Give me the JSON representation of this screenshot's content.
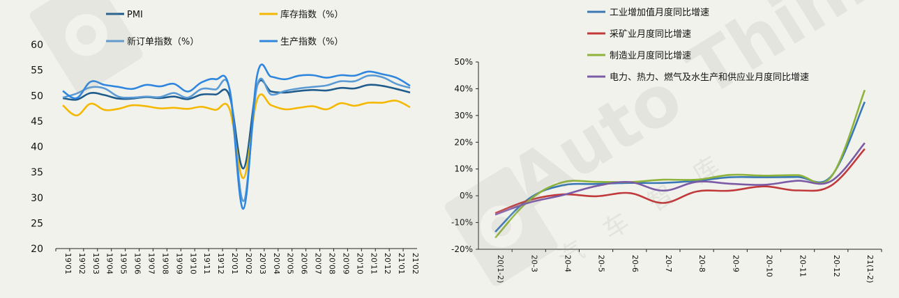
{
  "chart_data": [
    {
      "type": "line",
      "categories": [
        "19'01",
        "19'02",
        "19'03",
        "19'04",
        "19'05",
        "19'06",
        "19'07",
        "19'08",
        "19'09",
        "19'10",
        "19'11",
        "19'12",
        "20'01",
        "20'02",
        "20'03",
        "20'04",
        "20'05",
        "20'06",
        "20'07",
        "20'08",
        "20'09",
        "20'10",
        "20'11",
        "20'12",
        "21'01",
        "21'02"
      ],
      "ylim": [
        20,
        60
      ],
      "yticks": [
        "20",
        "25",
        "30",
        "35",
        "40",
        "45",
        "50",
        "55",
        "60"
      ],
      "legend_position": "top",
      "series": [
        {
          "name": "PMI",
          "color": "#1f5c8c",
          "values": [
            49.5,
            49.2,
            50.5,
            50.1,
            49.4,
            49.4,
            49.7,
            49.5,
            49.8,
            49.3,
            50.2,
            50.2,
            50.0,
            35.7,
            52.0,
            50.8,
            50.6,
            50.9,
            51.1,
            51.0,
            51.5,
            51.4,
            52.1,
            51.9,
            51.3,
            50.6
          ]
        },
        {
          "name": "库存指数（%）",
          "color": "#f5b800",
          "values": [
            48.1,
            46.1,
            48.4,
            47.2,
            47.4,
            48.1,
            47.9,
            47.5,
            47.6,
            47.4,
            47.8,
            47.2,
            47.4,
            33.8,
            49.3,
            48.1,
            47.3,
            47.6,
            47.9,
            47.3,
            48.5,
            48.0,
            48.6,
            48.6,
            49.0,
            47.7
          ]
        },
        {
          "name": "新订单指数（%）",
          "color": "#5b9bd5",
          "values": [
            49.6,
            50.4,
            51.6,
            51.4,
            49.8,
            49.6,
            49.8,
            49.7,
            50.5,
            49.6,
            51.3,
            51.2,
            51.4,
            29.3,
            52.0,
            50.2,
            50.9,
            51.4,
            51.7,
            52.0,
            52.8,
            52.8,
            53.9,
            53.6,
            52.3,
            51.5
          ]
        },
        {
          "name": "生产指数（%）",
          "color": "#2e86de",
          "values": [
            50.9,
            49.5,
            52.7,
            52.1,
            51.7,
            51.3,
            52.1,
            51.8,
            52.3,
            50.8,
            52.6,
            53.2,
            51.3,
            27.8,
            54.1,
            53.7,
            53.2,
            53.9,
            54.0,
            53.5,
            54.0,
            53.9,
            54.7,
            54.2,
            53.5,
            51.9
          ]
        }
      ]
    },
    {
      "type": "line",
      "categories": [
        "20(1-2)",
        "20-3",
        "20-4",
        "20-5",
        "20-6",
        "20-7",
        "20-8",
        "20-9",
        "20-10",
        "20-11",
        "20-12",
        "21(1-2)"
      ],
      "ylim": [
        -20,
        50
      ],
      "yticks": [
        "-20%",
        "-10%",
        "0%",
        "10%",
        "20%",
        "30%",
        "40%",
        "50%"
      ],
      "legend_position": "top",
      "series": [
        {
          "name": "工业增加值月度同比增速",
          "color": "#3a78b5",
          "values": [
            -13.5,
            -1.1,
            3.9,
            4.4,
            4.8,
            4.8,
            5.6,
            6.9,
            6.9,
            7.0,
            7.3,
            35.1
          ]
        },
        {
          "name": "采矿业月度同比增速",
          "color": "#c0393b",
          "values": [
            -6.5,
            -1.7,
            0.5,
            -0.2,
            1.0,
            -2.7,
            1.6,
            1.9,
            3.5,
            2.0,
            3.8,
            17.5
          ]
        },
        {
          "name": "制造业月度同比增速",
          "color": "#8db33a",
          "values": [
            -15.7,
            -1.8,
            5.0,
            5.2,
            5.1,
            6.0,
            6.0,
            7.8,
            7.5,
            7.7,
            7.1,
            39.5
          ]
        },
        {
          "name": "电力、热力、燃气及水生产和供应业月度同比增速",
          "color": "#7b5aa6",
          "values": [
            -7.1,
            -2.6,
            0.2,
            3.6,
            5.1,
            1.9,
            5.2,
            4.5,
            4.1,
            5.6,
            5.5,
            19.7
          ]
        }
      ]
    }
  ],
  "watermark": {
    "text": "Auto Thinker",
    "sub": "汽车智库"
  }
}
